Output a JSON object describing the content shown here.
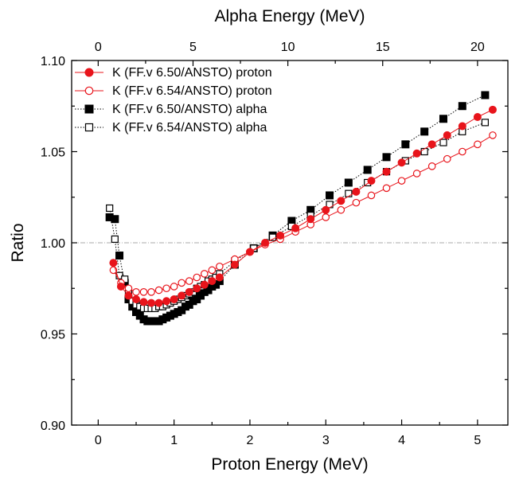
{
  "chart_data": {
    "type": "scatter",
    "xlabel": "Proton Energy (MeV)",
    "x2label": "Alpha Energy (MeV)",
    "ylabel": "Ratio",
    "xlim": [
      -0.35,
      5.4
    ],
    "x2lim": [
      -1.4,
      21.6
    ],
    "ylim": [
      0.9,
      1.1
    ],
    "xticks": [
      0,
      1,
      2,
      3,
      4,
      5
    ],
    "x2ticks": [
      0,
      5,
      10,
      15,
      20
    ],
    "yticks": [
      0.9,
      0.95,
      1.0,
      1.05,
      1.1
    ],
    "ytick_labels": [
      "0.90",
      "0.95",
      "1.00",
      "1.05",
      "1.10"
    ],
    "reference_line": 1.0,
    "legend_position": "top-left",
    "colors": {
      "red": "#e8141b",
      "black": "#000000",
      "refline": "#aaaaaa"
    },
    "series": [
      {
        "name": "K (FF.v 6.50/ANSTO) proton",
        "marker": "filled-circle",
        "color": "#e8141b",
        "line": "solid",
        "x": [
          0.2,
          0.3,
          0.4,
          0.5,
          0.6,
          0.7,
          0.8,
          0.9,
          1.0,
          1.1,
          1.2,
          1.3,
          1.4,
          1.5,
          1.6,
          1.8,
          2.0,
          2.2,
          2.4,
          2.6,
          2.8,
          3.0,
          3.2,
          3.4,
          3.6,
          3.8,
          4.0,
          4.2,
          4.4,
          4.6,
          4.8,
          5.0,
          5.2
        ],
        "y": [
          0.989,
          0.976,
          0.971,
          0.969,
          0.9675,
          0.967,
          0.967,
          0.968,
          0.969,
          0.971,
          0.973,
          0.975,
          0.977,
          0.979,
          0.981,
          0.988,
          0.995,
          1.0,
          1.004,
          1.008,
          1.013,
          1.018,
          1.023,
          1.028,
          1.034,
          1.039,
          1.044,
          1.049,
          1.054,
          1.059,
          1.064,
          1.069,
          1.073
        ]
      },
      {
        "name": "K (FF.v 6.54/ANSTO) proton",
        "marker": "open-circle",
        "color": "#e8141b",
        "line": "solid",
        "x": [
          0.2,
          0.3,
          0.4,
          0.5,
          0.6,
          0.7,
          0.8,
          0.9,
          1.0,
          1.1,
          1.2,
          1.3,
          1.4,
          1.5,
          1.6,
          1.8,
          2.0,
          2.2,
          2.4,
          2.6,
          2.8,
          3.0,
          3.2,
          3.4,
          3.6,
          3.8,
          4.0,
          4.2,
          4.4,
          4.6,
          4.8,
          5.0,
          5.2
        ],
        "y": [
          0.985,
          0.978,
          0.975,
          0.973,
          0.973,
          0.973,
          0.974,
          0.975,
          0.976,
          0.978,
          0.979,
          0.981,
          0.983,
          0.985,
          0.987,
          0.991,
          0.995,
          0.999,
          1.002,
          1.006,
          1.01,
          1.014,
          1.018,
          1.022,
          1.026,
          1.03,
          1.034,
          1.038,
          1.042,
          1.046,
          1.05,
          1.054,
          1.059
        ]
      },
      {
        "name": "K (FF.v 6.50/ANSTO) alpha",
        "marker": "filled-square",
        "color": "#000000",
        "line": "dotted",
        "x": [
          0.15,
          0.22,
          0.28,
          0.35,
          0.4,
          0.45,
          0.5,
          0.55,
          0.6,
          0.65,
          0.7,
          0.75,
          0.8,
          0.85,
          0.9,
          0.95,
          1.0,
          1.05,
          1.1,
          1.15,
          1.2,
          1.25,
          1.3,
          1.35,
          1.4,
          1.45,
          1.5,
          1.55,
          1.6,
          1.8,
          2.05,
          2.3,
          2.55,
          2.8,
          3.05,
          3.3,
          3.55,
          3.8,
          4.05,
          4.3,
          4.55,
          4.8,
          5.1
        ],
        "y": [
          1.014,
          1.013,
          0.993,
          0.978,
          0.969,
          0.965,
          0.962,
          0.96,
          0.958,
          0.957,
          0.957,
          0.957,
          0.957,
          0.958,
          0.959,
          0.96,
          0.961,
          0.962,
          0.963,
          0.965,
          0.966,
          0.968,
          0.969,
          0.971,
          0.973,
          0.974,
          0.976,
          0.977,
          0.979,
          0.988,
          0.997,
          1.004,
          1.012,
          1.018,
          1.026,
          1.033,
          1.04,
          1.047,
          1.054,
          1.061,
          1.068,
          1.075,
          1.081
        ]
      },
      {
        "name": "K (FF.v 6.54/ANSTO) alpha",
        "marker": "open-square",
        "color": "#000000",
        "line": "dotted",
        "x": [
          0.15,
          0.22,
          0.28,
          0.35,
          0.4,
          0.45,
          0.5,
          0.55,
          0.6,
          0.65,
          0.7,
          0.75,
          0.8,
          0.85,
          0.9,
          0.95,
          1.0,
          1.05,
          1.1,
          1.15,
          1.2,
          1.25,
          1.3,
          1.35,
          1.4,
          1.45,
          1.5,
          1.55,
          1.6,
          1.8,
          2.05,
          2.3,
          2.55,
          2.8,
          3.05,
          3.3,
          3.55,
          3.8,
          4.05,
          4.3,
          4.55,
          4.8,
          5.1
        ],
        "y": [
          1.019,
          1.002,
          0.982,
          0.98,
          0.972,
          0.968,
          0.966,
          0.965,
          0.964,
          0.964,
          0.964,
          0.964,
          0.965,
          0.965,
          0.966,
          0.967,
          0.968,
          0.969,
          0.97,
          0.971,
          0.972,
          0.973,
          0.975,
          0.976,
          0.977,
          0.979,
          0.98,
          0.981,
          0.983,
          0.99,
          0.997,
          1.003,
          1.009,
          1.015,
          1.021,
          1.027,
          1.033,
          1.039,
          1.045,
          1.05,
          1.055,
          1.061,
          1.066
        ]
      }
    ]
  }
}
